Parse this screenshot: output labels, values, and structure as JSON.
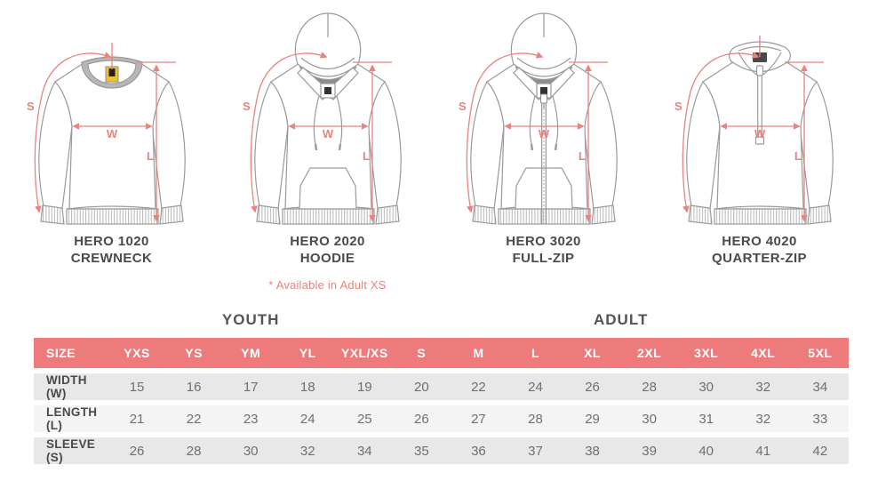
{
  "colors": {
    "accent_header": "#ee7b7b",
    "dimension_line": "#e8837e",
    "row_gray": "#e8e8e8",
    "row_light": "#f4f4f4",
    "outline_gray": "#9a9a9a",
    "label_text": "#4a4a4a",
    "value_text": "#6f6f6f",
    "tag_yellow": "#f0c12a"
  },
  "products": [
    {
      "model": "HERO 1020",
      "style": "CREWNECK"
    },
    {
      "model": "HERO 2020",
      "style": "HOODIE",
      "note": "* Available in Adult XS"
    },
    {
      "model": "HERO 3020",
      "style": "FULL-ZIP"
    },
    {
      "model": "HERO 4020",
      "style": "QUARTER-ZIP"
    }
  ],
  "dims": {
    "sleeve": "S",
    "width": "W",
    "length": "L"
  },
  "size_chart": {
    "group_headers": [
      {
        "label": "YOUTH",
        "span": 5
      },
      {
        "label": "ADULT",
        "span": 8
      }
    ],
    "columns": [
      "SIZE",
      "YXS",
      "YS",
      "YM",
      "YL",
      "YXL/XS",
      "S",
      "M",
      "L",
      "XL",
      "2XL",
      "3XL",
      "4XL",
      "5XL"
    ],
    "rows": [
      {
        "label": "WIDTH (W)",
        "values": [
          15,
          16,
          17,
          18,
          19,
          20,
          22,
          24,
          26,
          28,
          30,
          32,
          34
        ]
      },
      {
        "label": "LENGTH (L)",
        "values": [
          21,
          22,
          23,
          24,
          25,
          26,
          27,
          28,
          29,
          30,
          31,
          32,
          33
        ]
      },
      {
        "label": "SLEEVE (S)",
        "values": [
          26,
          28,
          30,
          32,
          34,
          35,
          36,
          37,
          38,
          39,
          40,
          41,
          42
        ]
      }
    ]
  }
}
